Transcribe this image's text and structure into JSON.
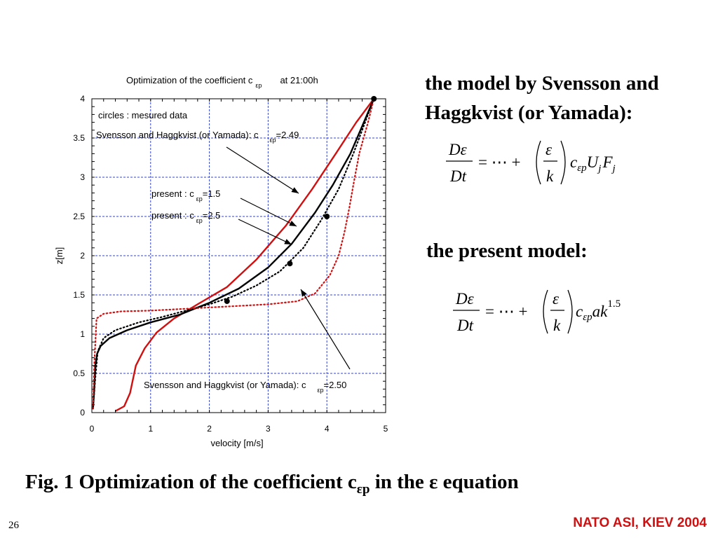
{
  "chart_data": {
    "type": "line",
    "title": "Optimization of the coefficient c",
    "title_sub": "εp",
    "title_suffix": "at 21:00h",
    "xlabel": "velocity [m/s]",
    "ylabel": "z[m]",
    "xlim": [
      0,
      5
    ],
    "ylim": [
      0,
      4
    ],
    "xticks": [
      0,
      1,
      2,
      3,
      4,
      5
    ],
    "yticks": [
      0,
      0.5,
      1,
      1.5,
      2,
      2.5,
      3,
      3.5,
      4
    ],
    "grid": true,
    "series": [
      {
        "style": "solid",
        "color": "#d01010",
        "x": [
          0.4,
          0.55,
          0.65,
          0.75,
          0.9,
          1.1,
          1.4,
          1.8,
          2.3,
          2.8,
          3.3,
          3.75,
          4.15,
          4.5,
          4.8
        ],
        "y": [
          0.02,
          0.08,
          0.25,
          0.6,
          0.82,
          1.02,
          1.2,
          1.38,
          1.6,
          1.95,
          2.38,
          2.85,
          3.3,
          3.7,
          4.0
        ]
      },
      {
        "style": "solid",
        "color": "#000000",
        "x": [
          0.02,
          0.04,
          0.06,
          0.09,
          0.15,
          0.3,
          0.6,
          1.0,
          1.5,
          2.0,
          2.5,
          3.0,
          3.4,
          3.8,
          4.1,
          4.4,
          4.6,
          4.8
        ],
        "y": [
          0.05,
          0.3,
          0.6,
          0.75,
          0.85,
          0.95,
          1.05,
          1.15,
          1.25,
          1.4,
          1.58,
          1.85,
          2.15,
          2.55,
          2.9,
          3.3,
          3.65,
          4.0
        ]
      },
      {
        "style": "dotted",
        "color": "#000000",
        "x": [
          0.02,
          0.06,
          0.1,
          0.2,
          0.4,
          0.8,
          1.2,
          1.6,
          2.0,
          2.4,
          2.8,
          3.2,
          3.6,
          3.9,
          4.2,
          4.45,
          4.65,
          4.8
        ],
        "y": [
          0.05,
          0.45,
          0.78,
          0.95,
          1.05,
          1.15,
          1.22,
          1.3,
          1.38,
          1.48,
          1.62,
          1.8,
          2.1,
          2.45,
          2.85,
          3.3,
          3.7,
          4.0
        ]
      },
      {
        "style": "dotted",
        "color": "#d01010",
        "x": [
          0.02,
          0.04,
          0.08,
          0.2,
          0.5,
          1.0,
          1.5,
          2.0,
          2.5,
          3.0,
          3.5,
          3.8,
          4.05,
          4.2,
          4.3,
          4.38,
          4.45,
          4.55,
          4.7,
          4.8
        ],
        "y": [
          0.05,
          0.6,
          1.2,
          1.26,
          1.29,
          1.3,
          1.32,
          1.34,
          1.36,
          1.38,
          1.42,
          1.52,
          1.75,
          2.0,
          2.3,
          2.6,
          2.9,
          3.3,
          3.7,
          4.0
        ]
      }
    ],
    "measured": {
      "x": [
        2.3,
        3.37,
        4.0,
        4.8
      ],
      "y": [
        1.42,
        1.9,
        2.5,
        4.0
      ]
    },
    "annotations": [
      {
        "text": "circles : mesured data"
      },
      {
        "text": "Svensson and Haggkvist (or Yamada): c",
        "sub": "εp",
        "suffix": "=2.49"
      },
      {
        "text": "present : c",
        "sub": "εp",
        "suffix": "=1.5"
      },
      {
        "text": "present : c",
        "sub": "εp",
        "suffix": "=2.5"
      },
      {
        "text": "Svensson and Haggkvist (or Yamada): c",
        "sub": "εp",
        "suffix": "=2.50"
      }
    ]
  },
  "text": {
    "model_a": "the model by Svensson and Haggkvist (or Yamada):",
    "model_b": "the present model:",
    "caption_pre": "Fig. 1 Optimization of the coefficient c",
    "caption_sub": "εp",
    "caption_post": " in the ε equation",
    "page_number": "26",
    "footer": "NATO ASI, KIEV 2004"
  },
  "equations": {
    "eq1": {
      "num": "Dε",
      "den": "Dt",
      "op": "= ⋯ +",
      "frac_num": "ε",
      "frac_den": "k",
      "c": "c",
      "sub": "εp",
      "tail1": "U",
      "tail1_sub": "j",
      "tail2": "F",
      "tail2_sub": "j"
    },
    "eq2": {
      "num": "Dε",
      "den": "Dt",
      "op": "= ⋯ +",
      "frac_num": "ε",
      "frac_den": "k",
      "c": "c",
      "sub": "εp",
      "tail": "ak",
      "sup": "1.5"
    }
  }
}
